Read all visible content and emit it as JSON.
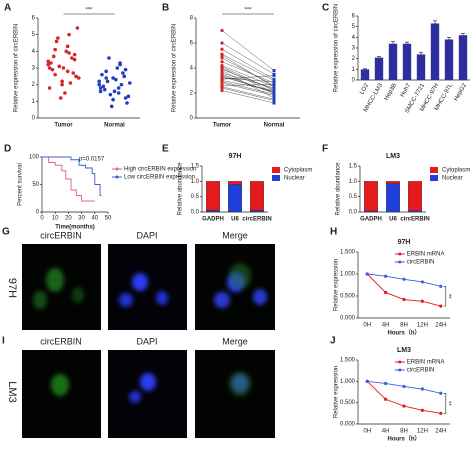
{
  "chart_data": [
    {
      "type": "strip",
      "label": "A",
      "ylabel": "Relative expression of circERBIN",
      "annotation": "***",
      "categories": [
        "Tumor",
        "Normal"
      ],
      "colors": [
        "#d62728",
        "#1f3fbf"
      ],
      "values": [
        [
          3.2,
          2.8,
          4.1,
          3.5,
          2.2,
          1.8,
          3.9,
          4.6,
          2.5,
          3.0,
          3.3,
          2.1,
          4.8,
          5.4,
          1.5,
          2.9,
          3.6,
          3.1,
          2.4,
          4.0,
          3.7,
          2.7,
          1.2,
          3.4,
          4.3,
          2.6,
          3.8,
          2.0,
          3.0,
          5.0
        ],
        [
          2.0,
          1.5,
          2.4,
          2.9,
          1.1,
          1.8,
          3.2,
          2.2,
          0.9,
          1.6,
          2.6,
          2.0,
          3.6,
          1.3,
          2.3,
          1.9,
          2.7,
          1.4,
          2.1,
          3.0,
          1.7,
          2.5,
          0.7,
          2.2,
          1.8,
          2.8,
          1.2,
          2.4,
          1.6,
          3.3
        ]
      ],
      "ylim": [
        0,
        6
      ],
      "yticks": [
        0,
        1,
        2,
        3,
        4,
        5,
        6
      ]
    },
    {
      "type": "paired",
      "label": "B",
      "ylabel": "Relative expression of circERBIN",
      "annotation": "***",
      "categories": [
        "Tumor",
        "Normal"
      ],
      "colors": [
        "#d62728",
        "#1f3fbf"
      ],
      "values": [
        [
          3.5,
          4.2,
          2.8,
          5.1,
          3.0,
          6.0,
          2.5,
          4.8,
          3.9,
          3.2,
          2.2,
          5.5,
          4.0,
          3.6,
          2.9,
          4.5,
          3.3,
          7.0,
          2.6,
          3.8,
          4.1,
          3.1,
          5.0,
          2.4,
          3.4
        ],
        [
          2.0,
          2.5,
          1.8,
          3.0,
          2.2,
          3.5,
          1.5,
          2.6,
          2.3,
          2.9,
          1.2,
          3.1,
          2.0,
          2.4,
          1.9,
          2.8,
          2.1,
          3.8,
          2.7,
          1.6,
          2.2,
          3.4,
          2.5,
          1.4,
          2.0
        ]
      ],
      "ylim": [
        0,
        8
      ],
      "yticks": [
        0,
        2,
        4,
        6,
        8
      ]
    },
    {
      "type": "bar",
      "label": "C",
      "ylabel": "Relative expression of circERBIN",
      "color": "#2e2e9e",
      "categories": [
        "LO2",
        "MHCC-LM3",
        "Hep3B",
        "Huh7",
        "SMCC-7721",
        "MHCC-97H",
        "MHCC-97L",
        "HepG2"
      ],
      "values": [
        1.0,
        2.1,
        3.4,
        3.4,
        2.4,
        5.3,
        3.8,
        4.2
      ],
      "errors": [
        0.05,
        0.1,
        0.2,
        0.15,
        0.2,
        0.25,
        0.2,
        0.15
      ],
      "ylim": [
        0,
        6
      ],
      "yticks": [
        0,
        1,
        2,
        3,
        4,
        5,
        6
      ]
    },
    {
      "type": "survival",
      "label": "D",
      "ylabel": "Percent survival",
      "xlabel": "Time(months)",
      "annotation": "p=0.0157",
      "series": [
        {
          "name": "High circERBIN expression",
          "color": "#e8607a",
          "x": [
            0,
            5,
            10,
            15,
            18,
            22,
            26,
            30,
            40
          ],
          "values": [
            100,
            90,
            85,
            75,
            60,
            40,
            30,
            20,
            20
          ]
        },
        {
          "name": "Low circERBIN expression",
          "color": "#3a5fcd",
          "x": [
            0,
            20,
            22,
            28,
            33,
            38,
            40,
            44,
            45
          ],
          "values": [
            100,
            100,
            95,
            85,
            80,
            70,
            50,
            30,
            30
          ]
        }
      ],
      "xlim": [
        0,
        50
      ],
      "xticks": [
        0,
        10,
        20,
        30,
        40,
        50
      ],
      "ylim": [
        0,
        100
      ],
      "yticks": [
        0,
        50,
        100
      ]
    },
    {
      "type": "stacked",
      "label": "E",
      "title": "97H",
      "ylabel": "Relative abundance",
      "categories": [
        "GADPH",
        "U6",
        "circERBIN"
      ],
      "series": [
        {
          "name": "Cytoplasm",
          "color": "#e41a1c",
          "values": [
            0.95,
            0.1,
            0.95
          ]
        },
        {
          "name": "Nuclear",
          "color": "#1f3fd8",
          "values": [
            0.05,
            0.9,
            0.05
          ]
        }
      ],
      "ylim": [
        0,
        1.5
      ],
      "yticks": [
        {
          "value": 0,
          "label": "0.0"
        },
        0.5,
        {
          "value": 1,
          "label": "1.0"
        },
        1.5
      ]
    },
    {
      "type": "stacked",
      "label": "F",
      "title": "LM3",
      "ylabel": "Relative abundance",
      "categories": [
        "GADPH",
        "U6",
        "circERBIN"
      ],
      "series": [
        {
          "name": "Cytoplasm",
          "color": "#e41a1c",
          "values": [
            0.97,
            0.08,
            0.96
          ]
        },
        {
          "name": "Nuclear",
          "color": "#1f3fd8",
          "values": [
            0.03,
            0.92,
            0.04
          ]
        }
      ],
      "ylim": [
        0,
        1.5
      ],
      "yticks": [
        {
          "value": 0,
          "label": "0.0"
        },
        0.5,
        {
          "value": 1,
          "label": "1.0"
        },
        1.5
      ]
    },
    {
      "type": "line",
      "label": "H",
      "title": "97H",
      "ylabel": "Relative expression",
      "xlabel": "Hours（h）",
      "annotation": "**",
      "categories": [
        "0H",
        "4H",
        "8H",
        "12H",
        "24H"
      ],
      "series": [
        {
          "name": "ERBIN mRNA",
          "color": "#e41a1c",
          "values": [
            1.0,
            0.58,
            0.42,
            0.38,
            0.27
          ]
        },
        {
          "name": "circERBIN",
          "color": "#3a5fe0",
          "values": [
            1.0,
            0.95,
            0.88,
            0.82,
            0.72
          ]
        }
      ],
      "ylim": [
        0,
        1.5
      ],
      "yticks": [
        {
          "value": 0,
          "label": "0.000"
        },
        {
          "value": 0.5,
          "label": "0.500"
        },
        {
          "value": 1,
          "label": "1.000"
        },
        {
          "value": 1.5,
          "label": "1.500"
        }
      ]
    },
    {
      "type": "line",
      "label": "J",
      "title": "LM3",
      "ylabel": "Relative expression",
      "xlabel": "Hours（h）",
      "annotation": "**",
      "categories": [
        "0H",
        "4H",
        "8H",
        "12H",
        "24H"
      ],
      "series": [
        {
          "name": "ERBIN mRNA",
          "color": "#e41a1c",
          "values": [
            1.0,
            0.58,
            0.42,
            0.32,
            0.25
          ]
        },
        {
          "name": "circERBIN",
          "color": "#3a5fe0",
          "values": [
            1.0,
            0.95,
            0.88,
            0.82,
            0.72
          ]
        }
      ],
      "ylim": [
        0,
        1.5
      ],
      "yticks": [
        {
          "value": 0,
          "label": "0.000"
        },
        {
          "value": 0.5,
          "label": "0.500"
        },
        {
          "value": 1,
          "label": "1.000"
        },
        {
          "value": 1.5,
          "label": "1.500"
        }
      ]
    }
  ],
  "image_panels": [
    {
      "label": "G",
      "row_label": "97H",
      "columns": [
        "circERBIN",
        "DAPI",
        "Merge"
      ]
    },
    {
      "label": "I",
      "row_label": "LM3",
      "columns": [
        "circERBIN",
        "DAPI",
        "Merge"
      ]
    }
  ]
}
